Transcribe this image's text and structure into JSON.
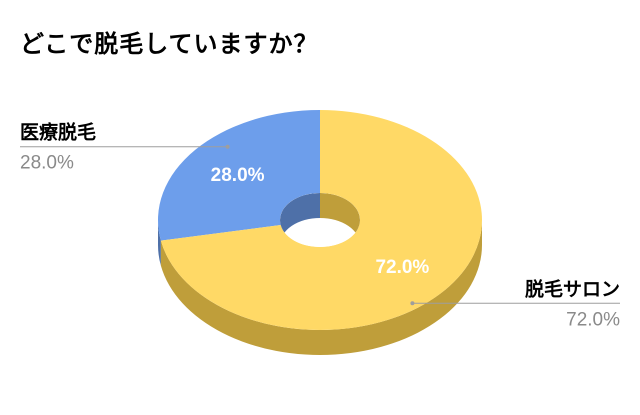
{
  "chart_data": {
    "type": "pie",
    "style": "3d-donut",
    "title": "どこで脱毛していますか？",
    "categories": [
      "医療脱毛",
      "脱毛サロン"
    ],
    "values": [
      28.0,
      72.0
    ],
    "value_labels": [
      "28.0%",
      "72.0%"
    ],
    "colors": [
      "#6d9eeb",
      "#ffd966"
    ],
    "side_colors": [
      "#4e70a8",
      "#bf9e3a"
    ],
    "legend": "callout labels outside slices",
    "start_angle_deg": 0,
    "direction": "counterclockwise from top"
  }
}
